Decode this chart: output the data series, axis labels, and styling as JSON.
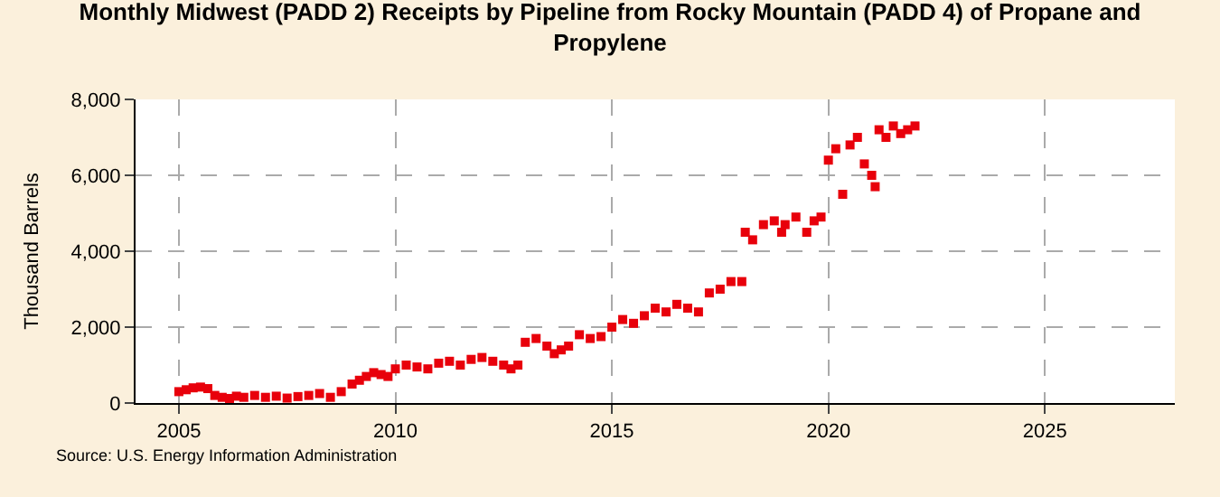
{
  "chart_data": {
    "type": "scatter",
    "title": "Monthly Midwest (PADD 2) Receipts by Pipeline from Rocky Mountain (PADD 4) of Propane and Propylene",
    "ylabel": "Thousand Barrels",
    "annotations": [
      "Source: U.S. Energy Information Administration"
    ],
    "x": [
      2005.0,
      2005.17,
      2005.33,
      2005.5,
      2005.67,
      2005.83,
      2006.0,
      2006.17,
      2006.33,
      2006.5,
      2006.75,
      2007.0,
      2007.25,
      2007.5,
      2007.75,
      2008.0,
      2008.25,
      2008.5,
      2008.75,
      2009.0,
      2009.17,
      2009.33,
      2009.5,
      2009.67,
      2009.83,
      2010.0,
      2010.25,
      2010.5,
      2010.75,
      2011.0,
      2011.25,
      2011.5,
      2011.75,
      2012.0,
      2012.25,
      2012.5,
      2012.67,
      2012.83,
      2013.0,
      2013.25,
      2013.5,
      2013.67,
      2013.83,
      2014.0,
      2014.25,
      2014.5,
      2014.75,
      2015.0,
      2015.25,
      2015.5,
      2015.75,
      2016.0,
      2016.25,
      2016.5,
      2016.75,
      2017.0,
      2017.25,
      2017.5,
      2017.75,
      2018.0,
      2018.08,
      2018.25,
      2018.5,
      2018.75,
      2018.92,
      2019.0,
      2019.25,
      2019.5,
      2019.67,
      2019.83,
      2020.0,
      2020.17,
      2020.33,
      2020.5,
      2020.67,
      2020.83,
      2021.0,
      2021.08,
      2021.17,
      2021.33,
      2021.5,
      2021.67,
      2021.83,
      2022.0
    ],
    "values": [
      300,
      350,
      400,
      420,
      380,
      200,
      150,
      120,
      180,
      150,
      200,
      150,
      180,
      130,
      170,
      200,
      250,
      150,
      300,
      500,
      600,
      700,
      800,
      750,
      700,
      900,
      1000,
      950,
      900,
      1050,
      1100,
      1000,
      1150,
      1200,
      1100,
      1000,
      900,
      1000,
      1600,
      1700,
      1500,
      1300,
      1400,
      1500,
      1800,
      1700,
      1750,
      2000,
      2200,
      2100,
      2300,
      2500,
      2400,
      2600,
      2500,
      2400,
      2900,
      3000,
      3200,
      3200,
      4500,
      4300,
      4700,
      4800,
      4500,
      4700,
      4900,
      4500,
      4800,
      4900,
      6400,
      6700,
      5500,
      6800,
      7000,
      6300,
      6000,
      5700,
      7200,
      7000,
      7300,
      7100,
      7200,
      7300
    ],
    "color": "#e8000b",
    "marker": "square",
    "xlim": [
      2004,
      2028
    ],
    "xticks": [
      2005,
      2010,
      2015,
      2020,
      2025
    ],
    "ylim": [
      0,
      8000
    ],
    "yticks": [
      0,
      {
        "value": 2000,
        "label": "2,000"
      },
      {
        "value": 4000,
        "label": "4,000"
      },
      {
        "value": 6000,
        "label": "6,000"
      },
      {
        "value": 8000,
        "label": "8,000"
      }
    ],
    "grid": true
  }
}
